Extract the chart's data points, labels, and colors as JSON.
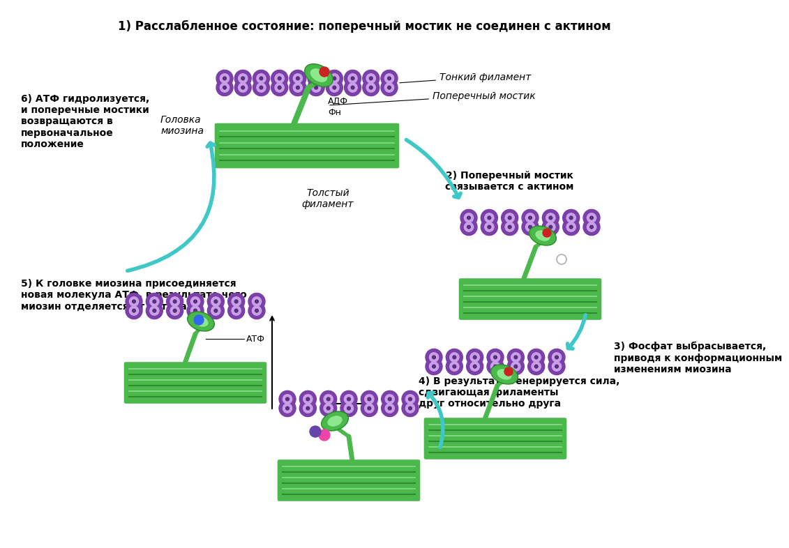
{
  "title": "1) Расслабленное состояние: поперечный мостик не соединен с актином",
  "title_fontsize": 12,
  "background_color": "#ffffff",
  "actin_color": "#7b3fa8",
  "actin_light_color": "#c9a0e8",
  "actin_dark_color": "#5a2d80",
  "myosin_color": "#4ab84a",
  "myosin_dark": "#2a8a2a",
  "thick_color": "#4ab84a",
  "thick_light": "#7dd87d",
  "thick_stripe": "#2d8a2d",
  "arrow_color": "#40c8c8",
  "text_color": "#000000",
  "step2": "2) Поперечный мостик\nсвязывается с актином",
  "step3": "3) Фосфат выбрасывается,\nприводя к конформационным\nизменениям миозина",
  "step4": "4) В результате генерируется сила,\nсдвигающая филаменты\nдруг относительно друга",
  "step5": "5) К головке миозина присоединяется\nновая молекула АТФ, в результате чего\nмиозин отделяется от актина",
  "step6": "6) АТФ гидролизуется,\nи поперечные мостики\nвозвращаются в\nпервоначальное\nположение",
  "label_thin": "Тонкий филамент",
  "label_cross": "Поперечный мостик",
  "label_thick": "Толстый\nфиламент",
  "label_head": "Головка\nмиозина",
  "label_adp": "АДФ",
  "label_fn": "Фн",
  "label_atp": "АТФ"
}
